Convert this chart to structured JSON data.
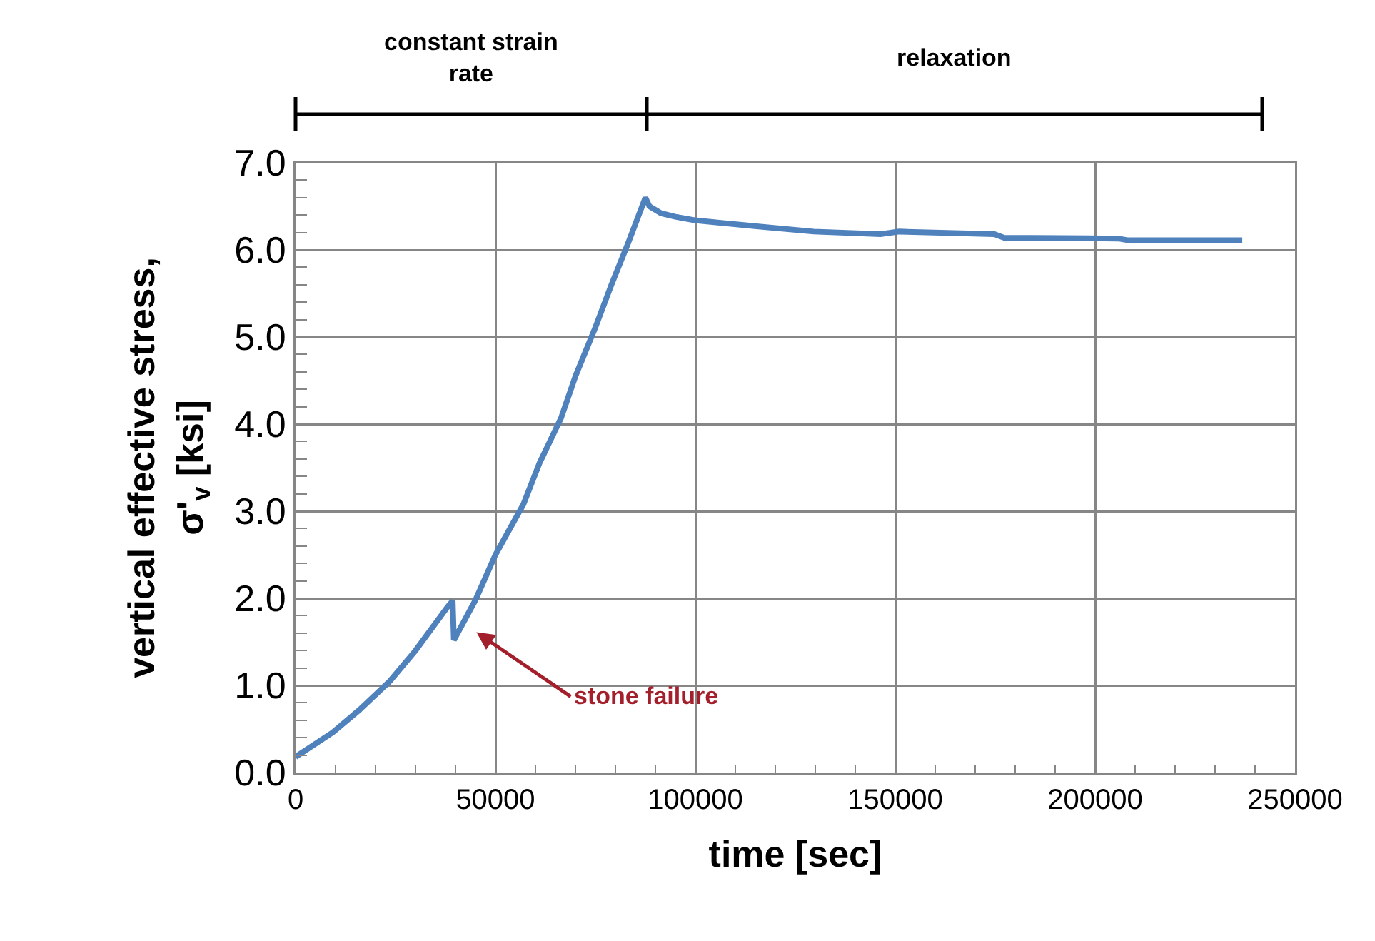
{
  "chart_data": {
    "type": "line",
    "xlabel": "time [sec]",
    "ylabel": "vertical effective stress, σ'$_{v}$ [ksi]",
    "x": [
      0,
      9300,
      16000,
      23600,
      30000,
      38000,
      39300,
      39600,
      45000,
      50000,
      57000,
      61000,
      66400,
      70000,
      74900,
      79000,
      83200,
      87500,
      88500,
      91400,
      95000,
      99800,
      115300,
      129600,
      146300,
      151000,
      174800,
      177200,
      205800,
      208300,
      236800
    ],
    "series": [
      {
        "color": "#4f81bd",
        "values": [
          0.18,
          0.46,
          0.72,
          1.05,
          1.4,
          1.9,
          1.97,
          1.52,
          1.98,
          2.5,
          3.08,
          3.55,
          4.07,
          4.55,
          5.1,
          5.6,
          6.08,
          6.6,
          6.5,
          6.42,
          6.38,
          6.34,
          6.27,
          6.21,
          6.18,
          6.21,
          6.18,
          6.14,
          6.13,
          6.11,
          6.11
        ]
      }
    ],
    "xlim": [
      0,
      250000
    ],
    "xticks": [
      0,
      50000,
      100000,
      150000,
      200000,
      250000
    ],
    "ylim": [
      0,
      7
    ],
    "yticks": [
      {
        "value": 0,
        "label": "0.0"
      },
      {
        "value": 1,
        "label": "1.0"
      },
      {
        "value": 2,
        "label": "2.0"
      },
      {
        "value": 3,
        "label": "3.0"
      },
      {
        "value": 4,
        "label": "4.0"
      },
      {
        "value": 5,
        "label": "5.0"
      },
      {
        "value": 6,
        "label": "6.0"
      },
      {
        "value": 7,
        "label": "7.0"
      }
    ],
    "grid": true,
    "marker": "none",
    "line_style": "solid",
    "annotations": [
      "stone failure",
      "constant strain rate",
      "relaxation"
    ]
  }
}
